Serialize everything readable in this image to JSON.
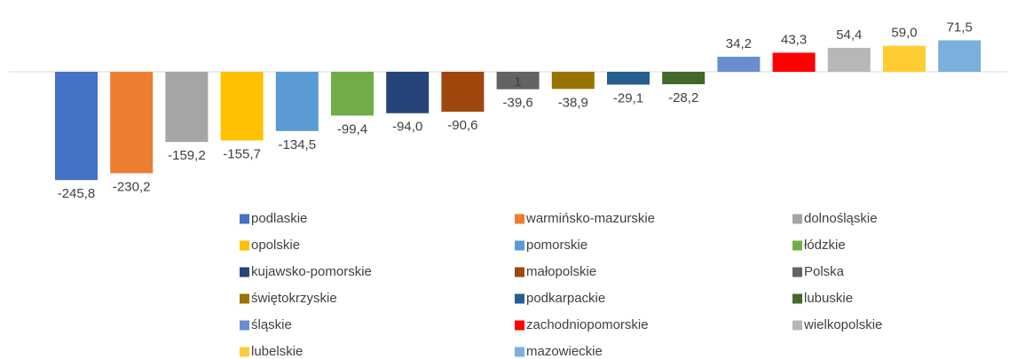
{
  "chart_data": {
    "type": "bar",
    "series": [
      {
        "name": "podlaskie",
        "color": "#4472C4",
        "values": [
          -245.8
        ],
        "value_labels": [
          "-245,8"
        ]
      },
      {
        "name": "warmińsko-mazurskie",
        "color": "#ED7D31",
        "values": [
          -230.2
        ],
        "value_labels": [
          "-230,2"
        ]
      },
      {
        "name": "dolnośląskie",
        "color": "#A5A5A5",
        "values": [
          -159.2
        ],
        "value_labels": [
          "-159,2"
        ]
      },
      {
        "name": "opolskie",
        "color": "#FFC000",
        "values": [
          -155.7
        ],
        "value_labels": [
          "-155,7"
        ]
      },
      {
        "name": "pomorskie",
        "color": "#5B9BD5",
        "values": [
          -134.5
        ],
        "value_labels": [
          "-134,5"
        ]
      },
      {
        "name": "łódzkie",
        "color": "#70AD47",
        "values": [
          -99.4
        ],
        "value_labels": [
          "-99,4"
        ]
      },
      {
        "name": "kujawsko-pomorskie",
        "color": "#264478",
        "values": [
          -94.0
        ],
        "value_labels": [
          "-94,0"
        ]
      },
      {
        "name": "małopolskie",
        "color": "#9E480E",
        "values": [
          -90.6
        ],
        "value_labels": [
          "-90,6"
        ]
      },
      {
        "name": "Polska",
        "color": "#636363",
        "values": [
          -39.6
        ],
        "value_labels": [
          "-39,6"
        ]
      },
      {
        "name": "świętokrzyskie",
        "color": "#997300",
        "values": [
          -38.9
        ],
        "value_labels": [
          "-38,9"
        ]
      },
      {
        "name": "podkarpackie",
        "color": "#255E91",
        "values": [
          -29.1
        ],
        "value_labels": [
          "-29,1"
        ]
      },
      {
        "name": "lubuskie",
        "color": "#43682B",
        "values": [
          -28.2
        ],
        "value_labels": [
          "-28,2"
        ]
      },
      {
        "name": "śląskie",
        "color": "#698ED0",
        "values": [
          34.2
        ],
        "value_labels": [
          "34,2"
        ]
      },
      {
        "name": "zachodniopomorskie",
        "color": "#FF0000",
        "values": [
          43.3
        ],
        "value_labels": [
          "43,3"
        ]
      },
      {
        "name": "wielkopolskie",
        "color": "#B7B7B7",
        "values": [
          54.4
        ],
        "value_labels": [
          "54,4"
        ]
      },
      {
        "name": "lubelskie",
        "color": "#FFCD33",
        "values": [
          59.0
        ],
        "value_labels": [
          "59,0"
        ]
      },
      {
        "name": "mazowieckie",
        "color": "#7CAFDD",
        "values": [
          71.5
        ],
        "value_labels": [
          "71,5"
        ]
      }
    ],
    "annotations": [
      "1"
    ],
    "legend": "bottom"
  }
}
